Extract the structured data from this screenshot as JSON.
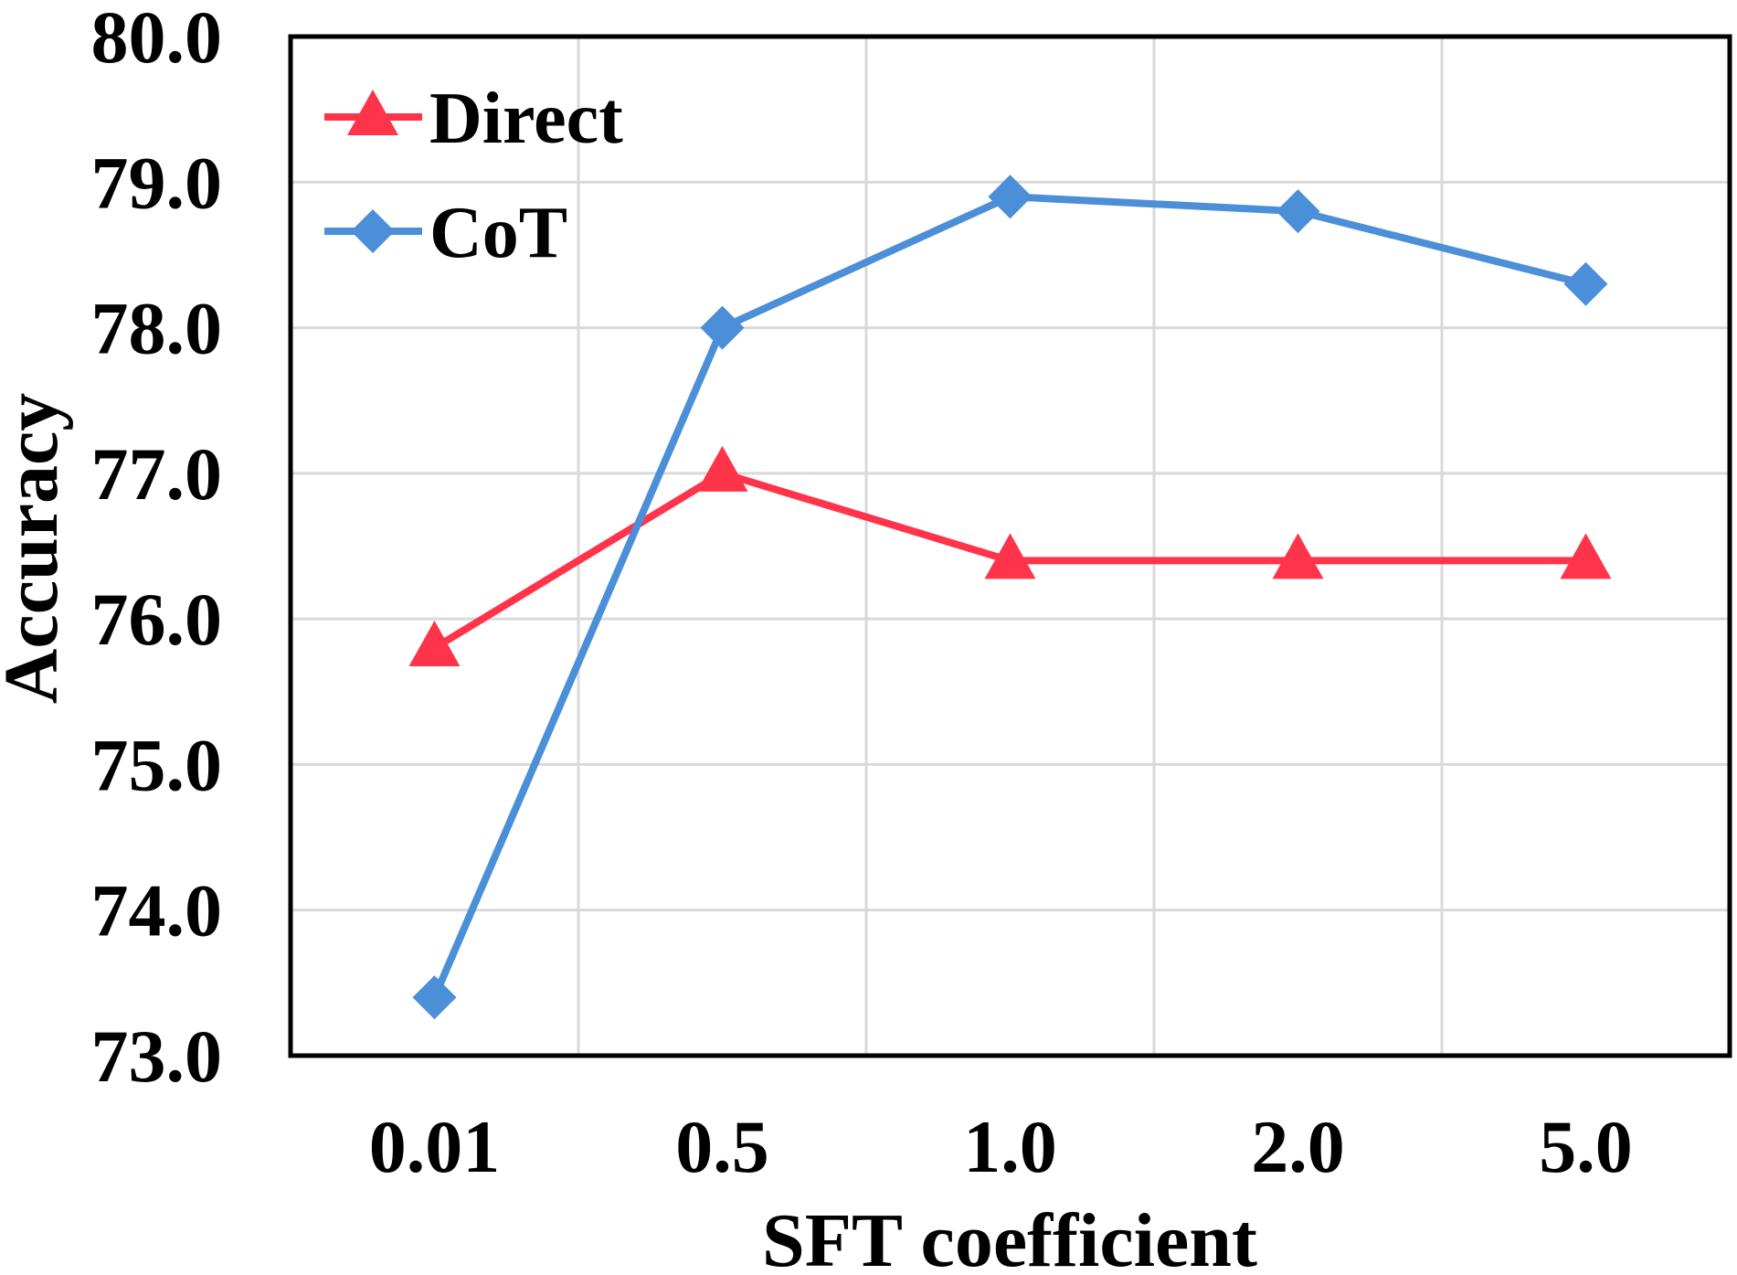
{
  "chart_data": {
    "type": "line",
    "title": "",
    "xlabel": "SFT coefficient",
    "ylabel": "Accuracy",
    "categories": [
      "0.01",
      "0.5",
      "1.0",
      "2.0",
      "5.0"
    ],
    "ylim": [
      73.0,
      80.0
    ],
    "yticks": [
      "73.0",
      "74.0",
      "75.0",
      "76.0",
      "77.0",
      "78.0",
      "79.0",
      "80.0"
    ],
    "grid": true,
    "legend_position": "top-left",
    "series": [
      {
        "name": "Direct",
        "color": "#ff344b",
        "marker": "triangle",
        "values": [
          75.8,
          77.0,
          76.4,
          76.4,
          76.4
        ]
      },
      {
        "name": "CoT",
        "color": "#4a8fd8",
        "marker": "diamond",
        "values": [
          73.4,
          78.0,
          78.9,
          78.8,
          78.3
        ]
      }
    ]
  }
}
